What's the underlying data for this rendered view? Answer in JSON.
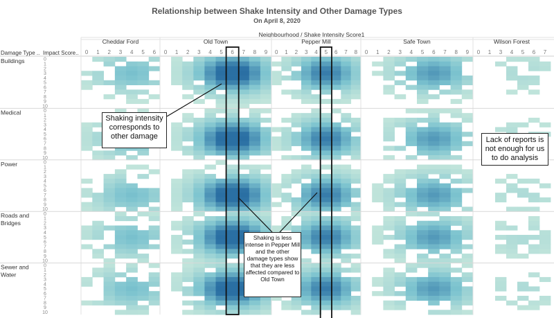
{
  "title": "Relationship between Shake Intensity and Other Damage Types",
  "subtitle": "On April 8, 2020",
  "column_group_label": "Neighbourhood / Shake Intensity Score1",
  "row_header_damage": "Damage Type ..",
  "row_header_impact": "Impact Score..",
  "annotations": [
    "Shaking intensity corresponds to other damage",
    "Shaking is less intense in Pepper Mill and the other damage types show that they are less affected compared to Old Town",
    "Lack of reports is not enough for us to do analysis"
  ],
  "colors": {
    "low": "#c8e8dc",
    "mid": "#7cc3cf",
    "high": "#2a6fa3",
    "box": "#111111",
    "grid": "#e2e2e2"
  },
  "chart_data": {
    "type": "heatmap",
    "title": "Relationship between Shake Intensity and Other Damage Types",
    "subtitle": "On April 8, 2020",
    "column_facet_label": "Neighbourhood / Shake Intensity Score1",
    "neighbourhoods": [
      {
        "name": "Cheddar Ford",
        "shake_scores": [
          0,
          1,
          2,
          3,
          4,
          5,
          6
        ],
        "peak_shake": 4,
        "strength": 0.45
      },
      {
        "name": "Old Town",
        "shake_scores": [
          0,
          1,
          2,
          3,
          4,
          5,
          6,
          7,
          8,
          9
        ],
        "peak_shake": 6,
        "strength": 1.0
      },
      {
        "name": "Pepper Mill",
        "shake_scores": [
          0,
          1,
          2,
          3,
          4,
          5,
          6,
          7,
          8
        ],
        "peak_shake": 5,
        "strength": 0.8
      },
      {
        "name": "Safe Town",
        "shake_scores": [
          0,
          1,
          2,
          3,
          4,
          5,
          6,
          7,
          8,
          9
        ],
        "peak_shake": 6,
        "strength": 0.65
      },
      {
        "name": "Wilson Forest",
        "shake_scores": [
          0,
          1,
          3,
          4,
          5,
          6,
          7
        ],
        "peak_shake": 5,
        "strength": 0.15
      }
    ],
    "damage_types": [
      {
        "name": "Buildings",
        "peak_impact": 3
      },
      {
        "name": "Medical",
        "peak_impact": 6
      },
      {
        "name": "Power",
        "peak_impact": 7
      },
      {
        "name": "Roads and Bridges",
        "peak_impact": 5
      },
      {
        "name": "Sewer and Water",
        "peak_impact": 5
      }
    ],
    "impact_scores": [
      0,
      1,
      2,
      3,
      4,
      5,
      6,
      7,
      8,
      9,
      10
    ],
    "color_encoding": "number of reports (light green = few, dark blue = many)",
    "highlighted_columns": [
      {
        "neighbourhood": "Old Town",
        "shake_score": 6
      },
      {
        "neighbourhood": "Pepper Mill",
        "shake_score": 5
      }
    ]
  }
}
